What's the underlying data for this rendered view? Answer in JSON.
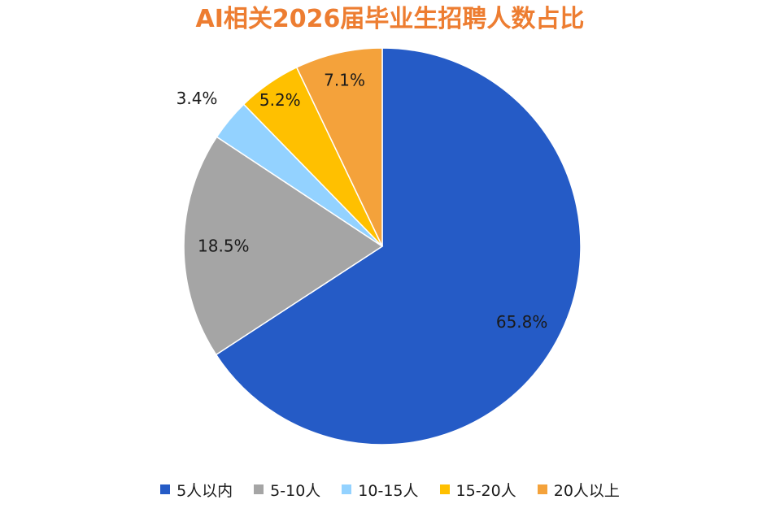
{
  "chart_data": {
    "type": "pie",
    "title": "AI相关2026届毕业生招聘人数占比",
    "categories": [
      "5人以内",
      "5-10人",
      "10-15人",
      "15-20人",
      "20人以上"
    ],
    "values": [
      65.8,
      18.5,
      3.4,
      5.2,
      7.1
    ],
    "value_labels": [
      "65.8%",
      "18.5%",
      "3.4%",
      "5.2%",
      "7.1%"
    ],
    "colors": [
      "#255BC6",
      "#A5A5A5",
      "#93D2FF",
      "#FFC000",
      "#F4A23B"
    ],
    "start_angle": "12 o'clock, clockwise",
    "legend_position": "bottom"
  }
}
